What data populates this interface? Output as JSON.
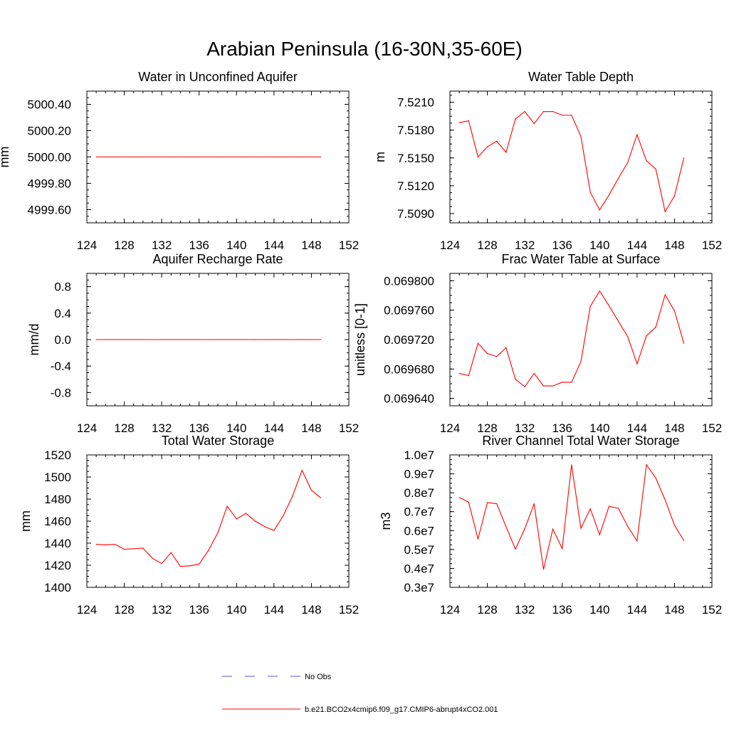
{
  "figure_title": "Arabian Peninsula (16-30N,35-60E)",
  "legend": {
    "entries": [
      {
        "label": "No Obs",
        "color": "#5555cc",
        "style": "dashed"
      },
      {
        "label": "b.e21.BCO2x4cmip6.f09_g17.CMIP6-abrupt4xCO2.001",
        "color": "#ff0000",
        "style": "solid"
      }
    ]
  },
  "chart_data": [
    {
      "type": "line",
      "title": "Water in Unconfined Aquifer",
      "xlabel": "",
      "ylabel": "mm",
      "xlim": [
        124,
        152
      ],
      "ylim": [
        4999.5,
        5000.5
      ],
      "xticks": [
        124,
        128,
        132,
        136,
        140,
        144,
        148,
        152
      ],
      "xtick_labels": [
        "124",
        "128",
        "132",
        "136",
        "140",
        "144",
        "148",
        "152"
      ],
      "yticks": [
        4999.6,
        4999.8,
        5000.0,
        5000.2,
        5000.4
      ],
      "ytick_labels": [
        "4999.60",
        "4999.80",
        "5000.00",
        "5000.20",
        "5000.40"
      ],
      "series": [
        {
          "name": "b.e21.BCO2x4cmip6.f09_g17.CMIP6-abrupt4xCO2.001",
          "color": "#ff0000",
          "x": [
            125,
            126,
            127,
            128,
            129,
            130,
            131,
            132,
            133,
            134,
            135,
            136,
            137,
            138,
            139,
            140,
            141,
            142,
            143,
            144,
            145,
            146,
            147,
            148,
            149
          ],
          "y": [
            5000,
            5000,
            5000,
            5000,
            5000,
            5000,
            5000,
            5000,
            5000,
            5000,
            5000,
            5000,
            5000,
            5000,
            5000,
            5000,
            5000,
            5000,
            5000,
            5000,
            5000,
            5000,
            5000,
            5000,
            5000
          ]
        }
      ]
    },
    {
      "type": "line",
      "title": "Water Table Depth",
      "xlabel": "",
      "ylabel": "m",
      "xlim": [
        124,
        152
      ],
      "ylim": [
        7.508,
        7.5222
      ],
      "xticks": [
        124,
        128,
        132,
        136,
        140,
        144,
        148,
        152
      ],
      "xtick_labels": [
        "124",
        "128",
        "132",
        "136",
        "140",
        "144",
        "148",
        "152"
      ],
      "yticks": [
        7.509,
        7.512,
        7.515,
        7.518,
        7.521
      ],
      "ytick_labels": [
        "7.5090",
        "7.5120",
        "7.5150",
        "7.5180",
        "7.5210"
      ],
      "series": [
        {
          "name": "b.e21.BCO2x4cmip6.f09_g17.CMIP6-abrupt4xCO2.001",
          "color": "#ff0000",
          "x": [
            125,
            126,
            127,
            128,
            129,
            130,
            131,
            132,
            133,
            134,
            135,
            136,
            137,
            138,
            139,
            140,
            141,
            142,
            143,
            144,
            145,
            146,
            147,
            148,
            149
          ],
          "y": [
            7.5188,
            7.519,
            7.5151,
            7.5162,
            7.5168,
            7.5156,
            7.5192,
            7.52,
            7.5187,
            7.52,
            7.52,
            7.5196,
            7.5196,
            7.5173,
            7.5113,
            7.5094,
            7.511,
            7.5128,
            7.5145,
            7.5175,
            7.5147,
            7.5138,
            7.5092,
            7.5109,
            7.515
          ]
        }
      ]
    },
    {
      "type": "line",
      "title": "Aquifer Recharge Rate",
      "xlabel": "",
      "ylabel": "mm/d",
      "xlim": [
        124,
        152
      ],
      "ylim": [
        -1.0,
        1.0
      ],
      "xticks": [
        124,
        128,
        132,
        136,
        140,
        144,
        148,
        152
      ],
      "xtick_labels": [
        "124",
        "128",
        "132",
        "136",
        "140",
        "144",
        "148",
        "152"
      ],
      "yticks": [
        -0.8,
        -0.4,
        0.0,
        0.4,
        0.8
      ],
      "ytick_labels": [
        "-0.8",
        "-0.4",
        "0.0",
        "0.4",
        "0.8"
      ],
      "series": [
        {
          "name": "b.e21.BCO2x4cmip6.f09_g17.CMIP6-abrupt4xCO2.001",
          "color": "#ff0000",
          "x": [
            125,
            126,
            127,
            128,
            129,
            130,
            131,
            132,
            133,
            134,
            135,
            136,
            137,
            138,
            139,
            140,
            141,
            142,
            143,
            144,
            145,
            146,
            147,
            148,
            149
          ],
          "y": [
            0,
            0,
            0,
            0,
            0,
            0,
            0,
            0,
            0,
            0,
            0,
            0,
            0,
            0,
            0,
            0,
            0,
            0,
            0,
            0,
            0,
            0,
            0,
            0,
            0
          ]
        }
      ]
    },
    {
      "type": "line",
      "title": "Frac Water Table at Surface",
      "xlabel": "",
      "ylabel": "unitless [0-1]",
      "xlim": [
        124,
        152
      ],
      "ylim": [
        0.06963,
        0.06981
      ],
      "xticks": [
        124,
        128,
        132,
        136,
        140,
        144,
        148,
        152
      ],
      "xtick_labels": [
        "124",
        "128",
        "132",
        "136",
        "140",
        "144",
        "148",
        "152"
      ],
      "yticks": [
        0.06964,
        0.06968,
        0.06972,
        0.06976,
        0.0698
      ],
      "ytick_labels": [
        "0.069640",
        "0.069680",
        "0.069720",
        "0.069760",
        "0.069800"
      ],
      "series": [
        {
          "name": "b.e21.BCO2x4cmip6.f09_g17.CMIP6-abrupt4xCO2.001",
          "color": "#ff0000",
          "x": [
            125,
            126,
            127,
            128,
            129,
            130,
            131,
            132,
            133,
            134,
            135,
            136,
            137,
            138,
            139,
            140,
            141,
            142,
            143,
            144,
            145,
            146,
            147,
            148,
            149
          ],
          "y": [
            0.069674,
            0.069671,
            0.069715,
            0.069701,
            0.069697,
            0.069709,
            0.069666,
            0.069656,
            0.069674,
            0.069657,
            0.069657,
            0.069662,
            0.069662,
            0.06969,
            0.069765,
            0.069786,
            0.069766,
            0.069745,
            0.069724,
            0.069687,
            0.069725,
            0.069737,
            0.069781,
            0.069759,
            0.069715
          ]
        }
      ]
    },
    {
      "type": "line",
      "title": "Total Water Storage",
      "xlabel": "",
      "ylabel": "mm",
      "xlim": [
        124,
        152
      ],
      "ylim": [
        1400,
        1520
      ],
      "xticks": [
        124,
        128,
        132,
        136,
        140,
        144,
        148,
        152
      ],
      "xtick_labels": [
        "124",
        "128",
        "132",
        "136",
        "140",
        "144",
        "148",
        "152"
      ],
      "yticks": [
        1400,
        1420,
        1440,
        1460,
        1480,
        1500,
        1520
      ],
      "ytick_labels": [
        "1400",
        "1420",
        "1440",
        "1460",
        "1480",
        "1500",
        "1520"
      ],
      "series": [
        {
          "name": "b.e21.BCO2x4cmip6.f09_g17.CMIP6-abrupt4xCO2.001",
          "color": "#ff0000",
          "x": [
            125,
            126,
            127,
            128,
            129,
            130,
            131,
            132,
            133,
            134,
            135,
            136,
            137,
            138,
            139,
            140,
            141,
            142,
            143,
            144,
            145,
            146,
            147,
            148,
            149
          ],
          "y": [
            1439,
            1438.5,
            1439,
            1434.5,
            1435,
            1435.5,
            1426.5,
            1421.5,
            1431.5,
            1419,
            1419.5,
            1421,
            1433.5,
            1449.5,
            1473.5,
            1462,
            1467,
            1460,
            1455,
            1451.5,
            1465,
            1483,
            1506,
            1488,
            1481
          ]
        }
      ]
    },
    {
      "type": "line",
      "title": "River Channel Total Water Storage",
      "xlabel": "",
      "ylabel": "m3",
      "xlim": [
        124,
        152
      ],
      "ylim": [
        3000000,
        10000000
      ],
      "xticks": [
        124,
        128,
        132,
        136,
        140,
        144,
        148,
        152
      ],
      "xtick_labels": [
        "124",
        "128",
        "132",
        "136",
        "140",
        "144",
        "148",
        "152"
      ],
      "yticks": [
        3000000,
        4000000,
        5000000,
        6000000,
        7000000,
        8000000,
        9000000,
        10000000
      ],
      "ytick_labels": [
        "0.3e7",
        "0.4e7",
        "0.5e7",
        "0.6e7",
        "0.7e7",
        "0.8e7",
        "0.9e7",
        "1.0e7"
      ],
      "series": [
        {
          "name": "b.e21.BCO2x4cmip6.f09_g17.CMIP6-abrupt4xCO2.001",
          "color": "#ff0000",
          "x": [
            125,
            126,
            127,
            128,
            129,
            130,
            131,
            132,
            133,
            134,
            135,
            136,
            137,
            138,
            139,
            140,
            141,
            142,
            143,
            144,
            145,
            146,
            147,
            148,
            149
          ],
          "y": [
            7750000,
            7500000,
            5550000,
            7480000,
            7420000,
            6200000,
            5020000,
            6100000,
            7420000,
            3950000,
            6080000,
            5050000,
            9480000,
            6120000,
            7150000,
            5780000,
            7280000,
            7180000,
            6220000,
            5450000,
            9480000,
            8780000,
            7620000,
            6280000,
            5480000
          ]
        }
      ]
    }
  ]
}
